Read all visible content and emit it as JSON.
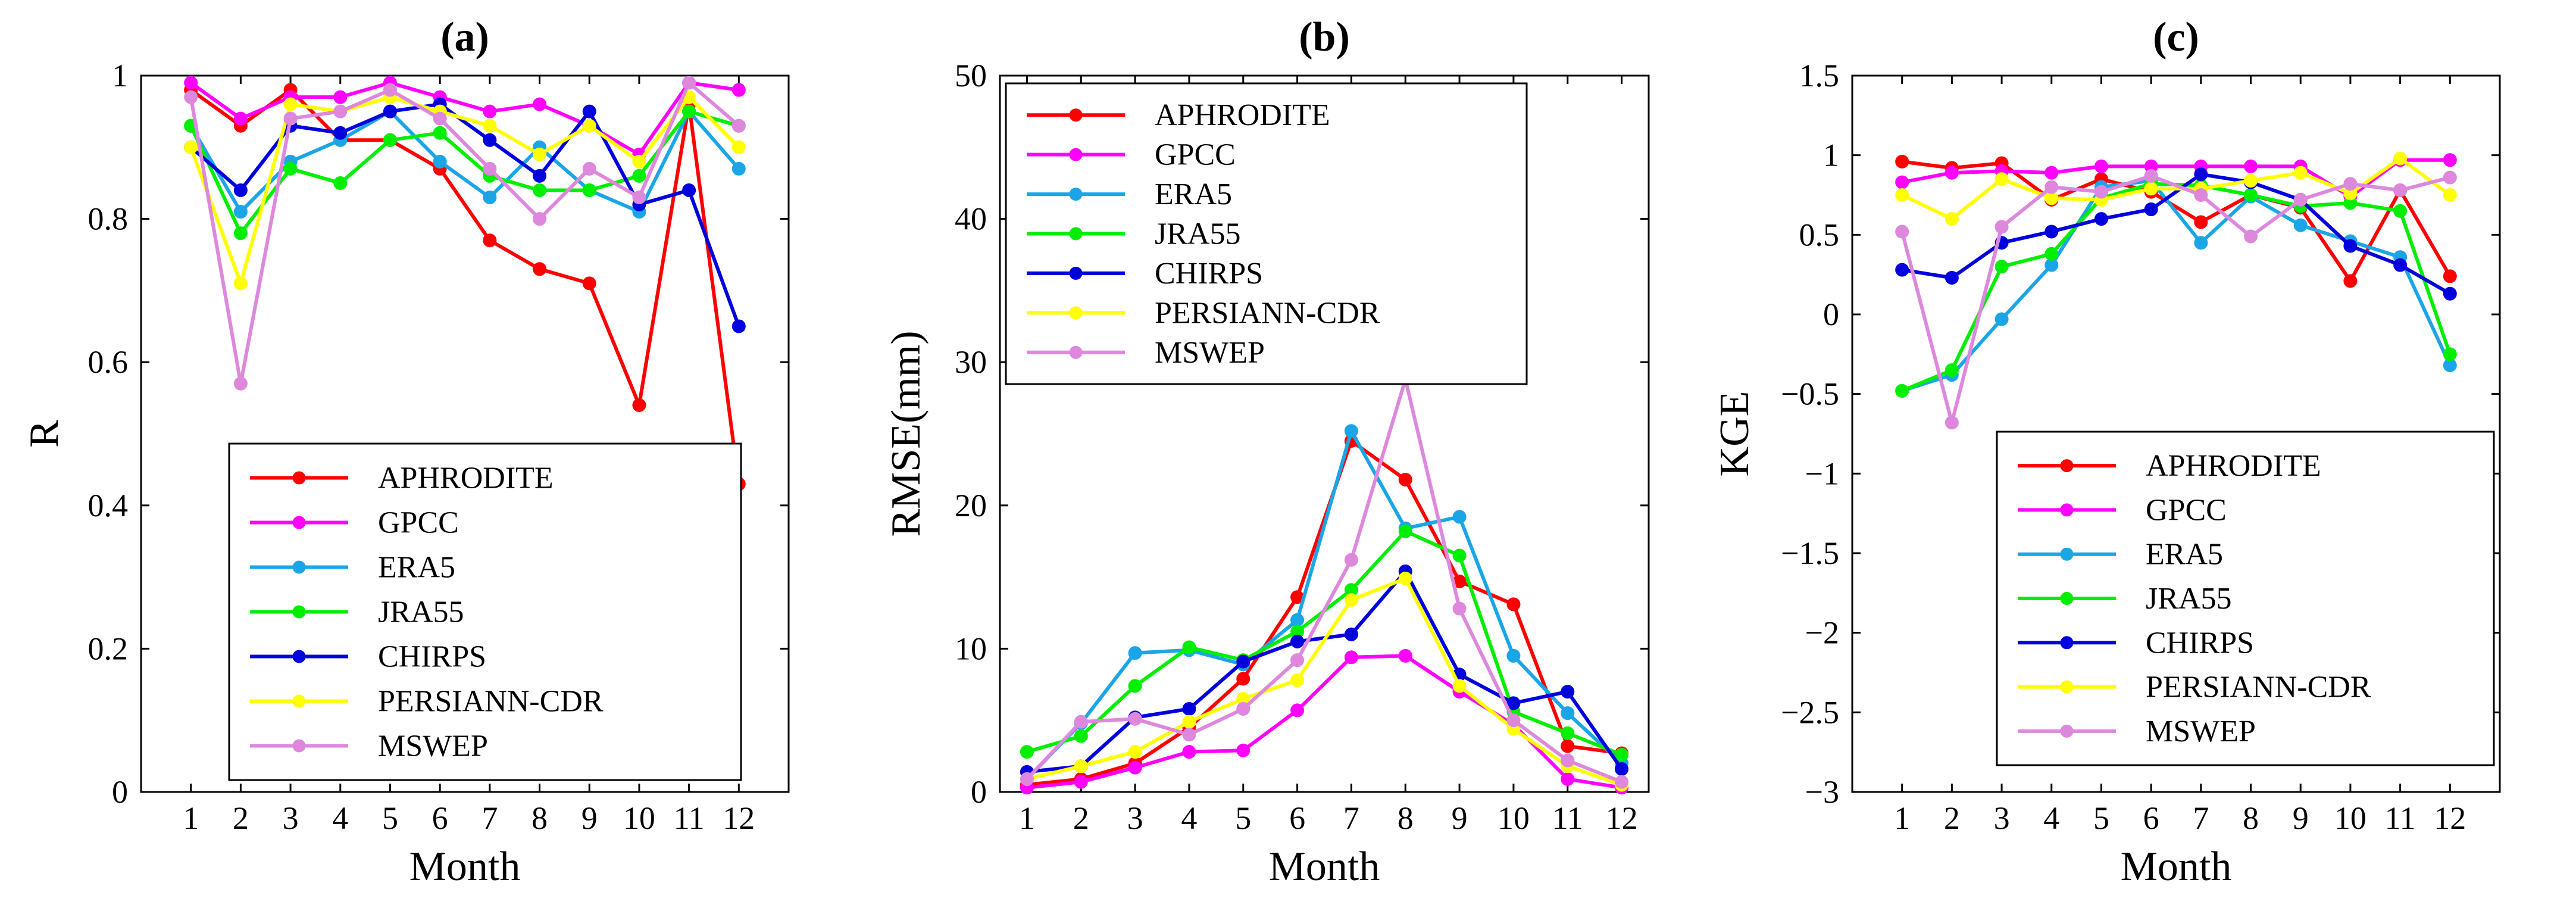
{
  "chart_data": [
    {
      "type": "line",
      "title": "(a)",
      "xlabel": "Month",
      "ylabel": "R",
      "xlim": [
        0,
        13
      ],
      "ylim": [
        0,
        1
      ],
      "x": [
        1,
        2,
        3,
        4,
        5,
        6,
        7,
        8,
        9,
        10,
        11,
        12
      ],
      "xticks": [
        "1",
        "2",
        "3",
        "4",
        "5",
        "6",
        "7",
        "8",
        "9",
        "10",
        "11",
        "12"
      ],
      "yticks": [
        {
          "value": 0,
          "label": "0"
        },
        {
          "value": 0.2,
          "label": "0.2"
        },
        {
          "value": 0.4,
          "label": "0.4"
        },
        {
          "value": 0.6,
          "label": "0.6"
        },
        {
          "value": 0.8,
          "label": "0.8"
        },
        {
          "value": 1,
          "label": "1"
        }
      ],
      "legend_location": "lower-right",
      "series": [
        {
          "name": "APHRODITE",
          "color": "#ff0000",
          "values": [
            0.98,
            0.93,
            0.98,
            0.91,
            0.91,
            0.87,
            0.77,
            0.73,
            0.71,
            0.54,
            0.96,
            0.43
          ]
        },
        {
          "name": "GPCC",
          "color": "#ff00ff",
          "values": [
            0.99,
            0.94,
            0.97,
            0.97,
            0.99,
            0.97,
            0.95,
            0.96,
            0.93,
            0.89,
            0.99,
            0.98
          ]
        },
        {
          "name": "ERA5",
          "color": "#1aa6e6",
          "values": [
            0.93,
            0.81,
            0.88,
            0.91,
            0.95,
            0.88,
            0.83,
            0.9,
            0.84,
            0.81,
            0.95,
            0.87
          ]
        },
        {
          "name": "JRA55",
          "color": "#00ee00",
          "values": [
            0.93,
            0.78,
            0.87,
            0.85,
            0.91,
            0.92,
            0.86,
            0.84,
            0.84,
            0.86,
            0.95,
            0.93
          ]
        },
        {
          "name": "CHIRPS",
          "color": "#0000dd",
          "values": [
            0.9,
            0.84,
            0.93,
            0.92,
            0.95,
            0.96,
            0.91,
            0.86,
            0.95,
            0.82,
            0.84,
            0.65
          ]
        },
        {
          "name": "PERSIANN-CDR",
          "color": "#ffff00",
          "values": [
            0.9,
            0.71,
            0.96,
            0.95,
            0.97,
            0.95,
            0.93,
            0.89,
            0.93,
            0.88,
            0.97,
            0.9
          ]
        },
        {
          "name": "MSWEP",
          "color": "#dd88dd",
          "values": [
            0.97,
            0.57,
            0.94,
            0.95,
            0.98,
            0.94,
            0.87,
            0.8,
            0.87,
            0.83,
            0.99,
            0.93
          ]
        }
      ]
    },
    {
      "type": "line",
      "title": "(b)",
      "xlabel": "Month",
      "ylabel": "RMSE(mm)",
      "xlim": [
        0.5,
        12.5
      ],
      "ylim": [
        0,
        50
      ],
      "x": [
        1,
        2,
        3,
        4,
        5,
        6,
        7,
        8,
        9,
        10,
        11,
        12
      ],
      "xticks": [
        "1",
        "2",
        "3",
        "4",
        "5",
        "6",
        "7",
        "8",
        "9",
        "10",
        "11",
        "12"
      ],
      "yticks": [
        {
          "value": 0,
          "label": "0"
        },
        {
          "value": 10,
          "label": "10"
        },
        {
          "value": 20,
          "label": "20"
        },
        {
          "value": 30,
          "label": "30"
        },
        {
          "value": 40,
          "label": "40"
        },
        {
          "value": 50,
          "label": "50"
        }
      ],
      "legend_location": "upper-left",
      "series": [
        {
          "name": "APHRODITE",
          "color": "#ff0000",
          "values": [
            0.5,
            0.9,
            2.0,
            4.5,
            7.9,
            13.6,
            24.5,
            21.8,
            14.7,
            13.1,
            3.2,
            2.7
          ]
        },
        {
          "name": "GPCC",
          "color": "#ff00ff",
          "values": [
            0.3,
            0.7,
            1.7,
            2.8,
            2.9,
            5.7,
            9.4,
            9.5,
            7.0,
            4.7,
            0.9,
            0.3
          ]
        },
        {
          "name": "ERA5",
          "color": "#1aa6e6",
          "values": [
            0.9,
            4.8,
            9.7,
            9.9,
            8.9,
            12.0,
            25.2,
            18.4,
            19.2,
            9.5,
            5.5,
            2.0
          ]
        },
        {
          "name": "JRA55",
          "color": "#00ee00",
          "values": [
            2.8,
            3.9,
            7.4,
            10.1,
            9.2,
            11.2,
            14.1,
            18.2,
            16.5,
            5.6,
            4.1,
            2.6
          ]
        },
        {
          "name": "CHIRPS",
          "color": "#0000dd",
          "values": [
            1.4,
            1.8,
            5.2,
            5.8,
            9.1,
            10.5,
            11.0,
            15.4,
            8.2,
            6.2,
            7.0,
            1.6
          ]
        },
        {
          "name": "PERSIANN-CDR",
          "color": "#ffff00",
          "values": [
            0.9,
            1.8,
            2.8,
            4.9,
            6.5,
            7.8,
            13.4,
            14.9,
            7.4,
            4.4,
            1.8,
            0.5
          ]
        },
        {
          "name": "MSWEP",
          "color": "#dd88dd",
          "values": [
            0.9,
            4.9,
            5.1,
            4.0,
            5.8,
            9.2,
            16.2,
            28.8,
            12.8,
            5.0,
            2.2,
            0.7
          ]
        }
      ]
    },
    {
      "type": "line",
      "title": "(c)",
      "xlabel": "Month",
      "ylabel": "KGE",
      "xlim": [
        0,
        13
      ],
      "ylim": [
        -3,
        1.5
      ],
      "x": [
        1,
        2,
        3,
        4,
        5,
        6,
        7,
        8,
        9,
        10,
        11,
        12
      ],
      "xticks": [
        "1",
        "2",
        "3",
        "4",
        "5",
        "6",
        "7",
        "8",
        "9",
        "10",
        "11",
        "12"
      ],
      "yticks": [
        {
          "value": -3,
          "label": "−3"
        },
        {
          "value": -2.5,
          "label": "−2.5"
        },
        {
          "value": -2,
          "label": "−2"
        },
        {
          "value": -1.5,
          "label": "−1.5"
        },
        {
          "value": -1,
          "label": "−1"
        },
        {
          "value": -0.5,
          "label": "−0.5"
        },
        {
          "value": 0,
          "label": "0"
        },
        {
          "value": 0.5,
          "label": "0.5"
        },
        {
          "value": 1,
          "label": "1"
        },
        {
          "value": 1.5,
          "label": "1.5"
        }
      ],
      "legend_location": "lower-right",
      "series": [
        {
          "name": "APHRODITE",
          "color": "#ff0000",
          "values": [
            0.96,
            0.92,
            0.95,
            0.72,
            0.85,
            0.77,
            0.58,
            0.75,
            0.67,
            0.21,
            0.78,
            0.24
          ]
        },
        {
          "name": "GPCC",
          "color": "#ff00ff",
          "values": [
            0.83,
            0.89,
            0.9,
            0.89,
            0.93,
            0.93,
            0.93,
            0.93,
            0.93,
            0.74,
            0.97,
            0.97
          ]
        },
        {
          "name": "ERA5",
          "color": "#1aa6e6",
          "values": [
            -0.48,
            -0.38,
            -0.03,
            0.31,
            0.8,
            0.84,
            0.45,
            0.74,
            0.56,
            0.46,
            0.36,
            -0.32
          ]
        },
        {
          "name": "JRA55",
          "color": "#00ee00",
          "values": [
            -0.48,
            -0.35,
            0.3,
            0.38,
            0.73,
            0.82,
            0.81,
            0.75,
            0.68,
            0.7,
            0.65,
            -0.25
          ]
        },
        {
          "name": "CHIRPS",
          "color": "#0000dd",
          "values": [
            0.28,
            0.23,
            0.45,
            0.52,
            0.6,
            0.66,
            0.88,
            0.83,
            0.72,
            0.43,
            0.31,
            0.13
          ]
        },
        {
          "name": "PERSIANN-CDR",
          "color": "#ffff00",
          "values": [
            0.75,
            0.6,
            0.85,
            0.73,
            0.72,
            0.79,
            0.79,
            0.84,
            0.89,
            0.76,
            0.98,
            0.75
          ]
        },
        {
          "name": "MSWEP",
          "color": "#dd88dd",
          "values": [
            0.52,
            -0.68,
            0.55,
            0.8,
            0.77,
            0.87,
            0.75,
            0.49,
            0.72,
            0.82,
            0.78,
            0.86
          ]
        }
      ]
    }
  ]
}
